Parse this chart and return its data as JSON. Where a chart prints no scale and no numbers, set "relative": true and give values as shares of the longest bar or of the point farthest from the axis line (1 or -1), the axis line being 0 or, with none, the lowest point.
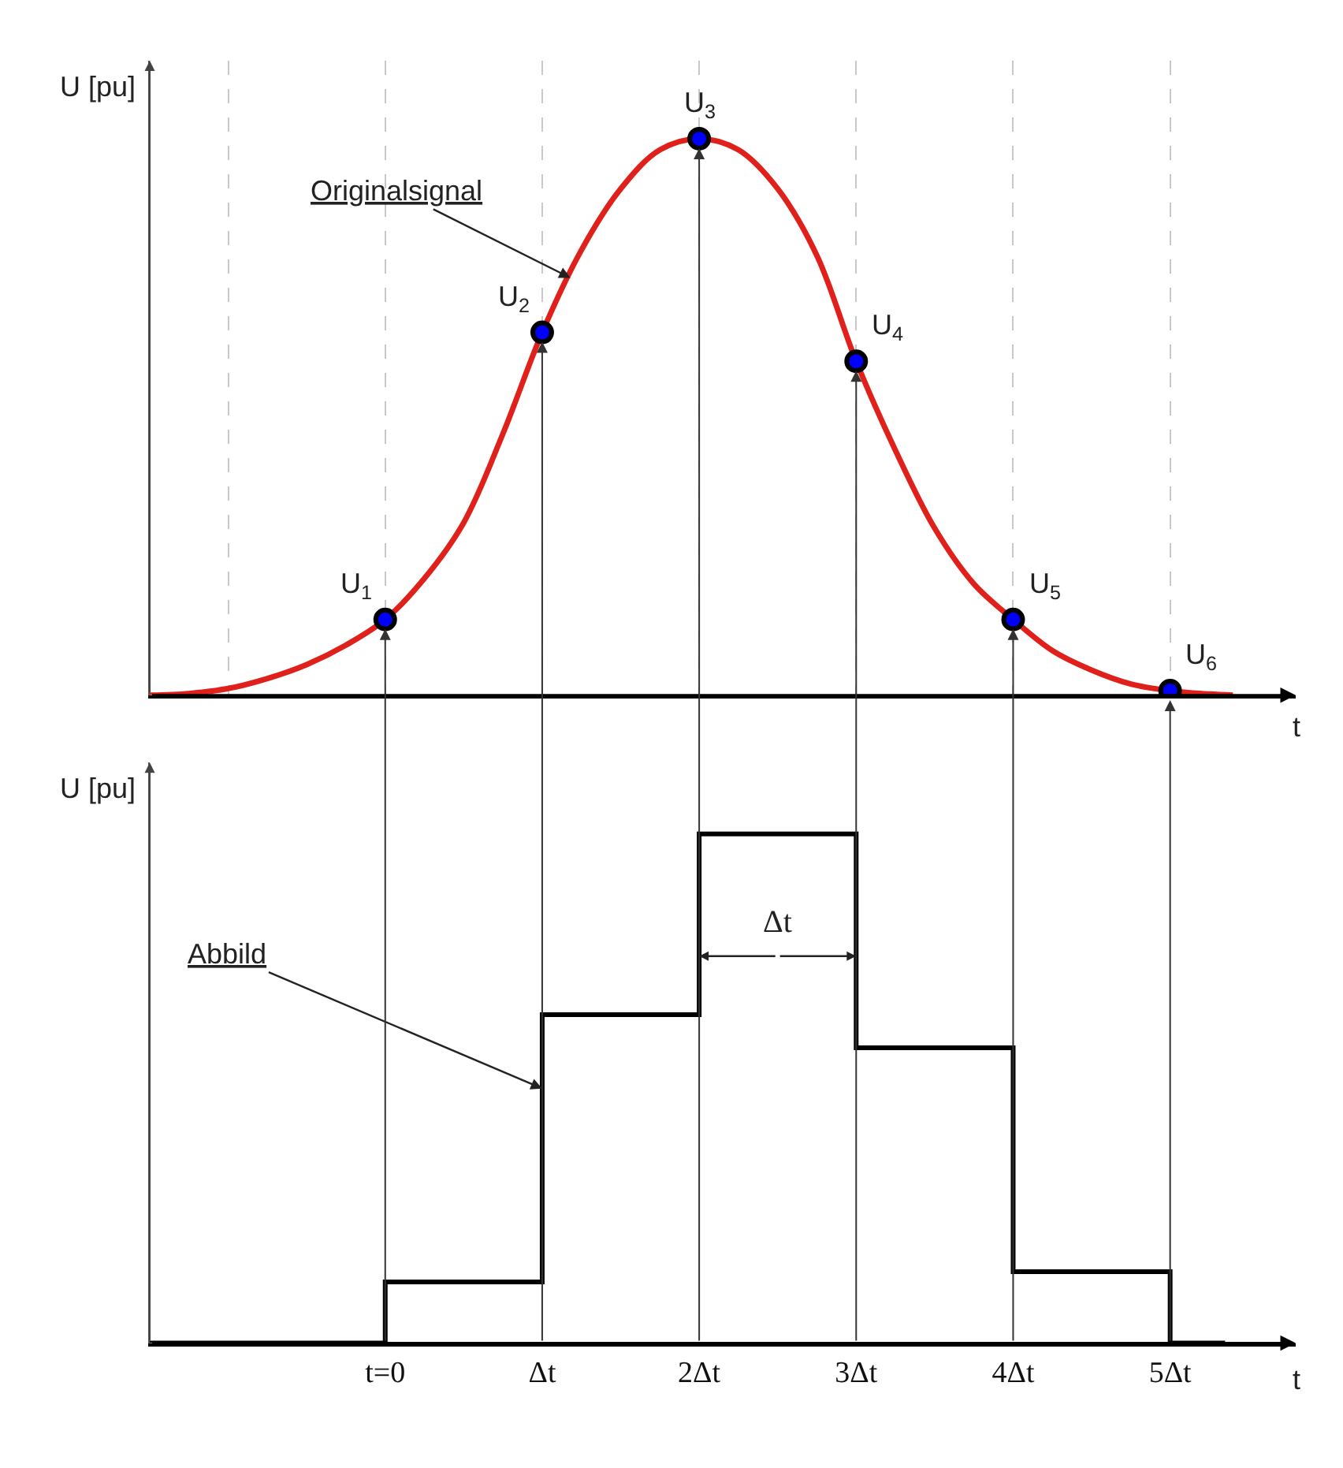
{
  "chart_data": [
    {
      "type": "line",
      "relative": true,
      "ylabel": "U [pu]",
      "xlabel": "t",
      "xlim": [
        -1.5,
        5.8
      ],
      "xticks": [
        {
          "value": -1,
          "label": null
        },
        {
          "value": 0,
          "label": null
        },
        {
          "value": 1,
          "label": null
        },
        {
          "value": 2,
          "label": null
        },
        {
          "value": 3,
          "label": null
        },
        {
          "value": 4,
          "label": null
        },
        {
          "value": 5,
          "label": null
        }
      ],
      "grid": "x",
      "tick_labels": false,
      "series": [
        {
          "color": "#e0201b",
          "x": [
            -1.5,
            -1.25,
            -1,
            -0.75,
            -0.5,
            -0.25,
            0,
            0.25,
            0.5,
            0.75,
            1,
            1.25,
            1.5,
            1.75,
            2,
            2.25,
            2.5,
            2.75,
            3,
            3.25,
            3.5,
            3.75,
            4,
            4.25,
            4.5,
            4.75,
            5,
            5.25,
            5.4
          ],
          "values": [
            0,
            0.003,
            0.012,
            0.03,
            0.055,
            0.09,
            0.136,
            0.21,
            0.31,
            0.47,
            0.652,
            0.8,
            0.91,
            0.98,
            1,
            0.98,
            0.91,
            0.79,
            0.6,
            0.44,
            0.3,
            0.2,
            0.136,
            0.08,
            0.045,
            0.02,
            0.008,
            0.002,
            0
          ]
        },
        {
          "type": "scatter",
          "color": "#0000ff",
          "x": [
            0,
            1,
            2,
            3,
            4,
            5
          ],
          "values": [
            0.136,
            0.652,
            1,
            0.6,
            0.136,
            0.008
          ]
        }
      ],
      "annotations": [
        {
          "text": "Originalsignal",
          "x": 1.18,
          "y": 0.75
        },
        {
          "text": "U$_{1}$",
          "x": 0,
          "y": 0.136
        },
        {
          "text": "U$_{2}$",
          "x": 1,
          "y": 0.652
        },
        {
          "text": "U$_{3}$",
          "x": 2,
          "y": 1
        },
        {
          "text": "U$_{4}$",
          "x": 3,
          "y": 0.6
        },
        {
          "text": "U$_{5}$",
          "x": 4,
          "y": 0.136
        },
        {
          "text": "U$_{6}$",
          "x": 5,
          "y": 0.008
        }
      ]
    },
    {
      "type": "step",
      "relative": true,
      "ylabel": "U [pu]",
      "xlabel": "t",
      "xlim": [
        -1.5,
        5.8
      ],
      "xticks": [
        {
          "value": 0,
          "label": "t=0"
        },
        {
          "value": 1,
          "label": "Δt"
        },
        {
          "value": 2,
          "label": "2Δt"
        },
        {
          "value": 3,
          "label": "3Δt"
        },
        {
          "value": 4,
          "label": "4Δt"
        },
        {
          "value": 5,
          "label": "5Δt"
        }
      ],
      "tick_labels": "x",
      "series": [
        {
          "color": "#000000",
          "x": [
            -1.5,
            0,
            1,
            2,
            3,
            4,
            5,
            5.35
          ],
          "values": [
            0,
            0.12,
            0.645,
            1,
            0.58,
            0.14,
            0,
            0
          ]
        }
      ],
      "annotations": [
        {
          "text": "Abbild",
          "x": 1,
          "y": 0.5
        },
        "Δt"
      ]
    }
  ]
}
